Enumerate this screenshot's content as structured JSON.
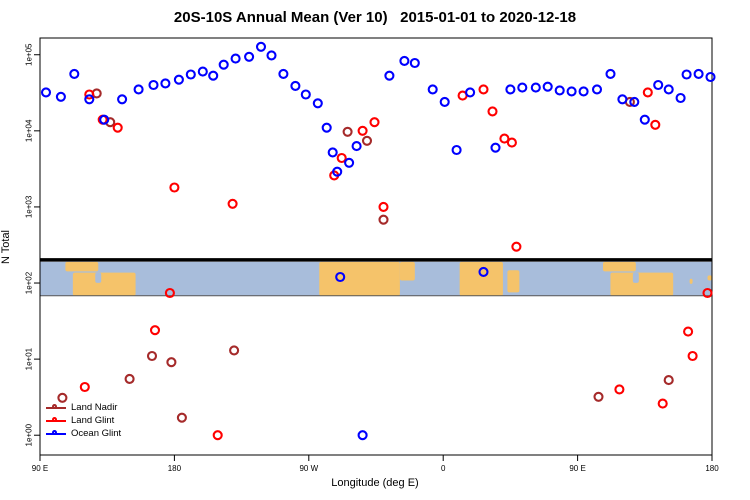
{
  "title": "20S-10S Annual Mean (Ver 10)   2015-01-01 to 2020-12-18",
  "chart_data": {
    "type": "scatter",
    "title": "20S-10S Annual Mean (Ver 10)   2015-01-01 to 2020-12-18",
    "xlabel": "Longitude (deg E)",
    "ylabel": "N Total",
    "x_axis": {
      "range": [
        90,
        540
      ],
      "ticks": [
        90,
        180,
        270,
        360,
        450,
        540
      ],
      "tick_labels": [
        "90 E",
        "180",
        "90 W",
        "0",
        "90 E",
        "180"
      ]
    },
    "y_axis": {
      "scale": "log10",
      "range_log": [
        -0.26,
        5.22
      ],
      "ticks_log": [
        0,
        1,
        2,
        3,
        4,
        5
      ],
      "tick_labels": [
        "1e+00",
        "1e+01",
        "1e+02",
        "1e+03",
        "1e+04",
        "1e+05"
      ]
    },
    "grid": false,
    "legend_position": "bottom-left",
    "map_strip": {
      "description": "world coastline band for latitude 20S-10S",
      "top_value": 190,
      "bottom_value": 68,
      "ocean_color": "#A8BDDB",
      "land_color": "#F5C36A",
      "land_patches": [
        {
          "name": "timor-islands",
          "lon0": 107,
          "lon1": 129,
          "top": 0,
          "bottom": 0.28
        },
        {
          "name": "australia-north",
          "lon0": 112,
          "lon1": 154,
          "top": 0.32,
          "bottom": 1.0
        },
        {
          "name": "gulf-of-carpentaria",
          "lon0": 127,
          "lon1": 131,
          "top": 0.32,
          "bottom": 0.62,
          "color": "ocean"
        },
        {
          "name": "south-america",
          "lon0": 277,
          "lon1": 331,
          "top": 0,
          "bottom": 1.0
        },
        {
          "name": "south-america-east",
          "lon0": 331,
          "lon1": 341,
          "top": 0,
          "bottom": 0.55
        },
        {
          "name": "africa",
          "lon0": 371,
          "lon1": 400,
          "top": 0,
          "bottom": 1.0
        },
        {
          "name": "madagascar",
          "lon0": 403,
          "lon1": 411,
          "top": 0.25,
          "bottom": 0.9
        },
        {
          "name": "timor-islands-2",
          "lon0": 467,
          "lon1": 489,
          "top": 0,
          "bottom": 0.28
        },
        {
          "name": "australia-north-2",
          "lon0": 472,
          "lon1": 514,
          "top": 0.32,
          "bottom": 1.0
        },
        {
          "name": "gulf-of-carpentaria-2",
          "lon0": 487,
          "lon1": 491,
          "top": 0.32,
          "bottom": 0.62,
          "color": "ocean"
        },
        {
          "name": "new-caledonia",
          "lon0": 525,
          "lon1": 527,
          "top": 0.5,
          "bottom": 0.65
        },
        {
          "name": "fiji",
          "lon0": 537,
          "lon1": 540,
          "top": 0.4,
          "bottom": 0.55
        }
      ]
    },
    "series": [
      {
        "name": "Land Nadir",
        "color": "#A52A2A",
        "points": [
          [
            128,
            31000
          ],
          [
            137,
            13000
          ],
          [
            296,
            9700
          ],
          [
            309,
            7400
          ],
          [
            320,
            680
          ],
          [
            485,
            24000
          ],
          [
            220,
            13
          ],
          [
            165,
            11
          ],
          [
            178,
            9.1
          ],
          [
            150,
            5.5
          ],
          [
            105,
            3.1
          ],
          [
            185,
            1.7
          ],
          [
            464,
            3.2
          ],
          [
            511,
            5.3
          ]
        ]
      },
      {
        "name": "Land Glint",
        "color": "#FF0000",
        "points": [
          [
            123,
            30000
          ],
          [
            132,
            14000
          ],
          [
            142,
            11000
          ],
          [
            180,
            1800
          ],
          [
            219,
            1100
          ],
          [
            287,
            2600
          ],
          [
            292,
            4400
          ],
          [
            306,
            10000
          ],
          [
            314,
            13000
          ],
          [
            320,
            1000
          ],
          [
            373,
            29000
          ],
          [
            387,
            35000
          ],
          [
            393,
            18000
          ],
          [
            401,
            7900
          ],
          [
            406,
            7000
          ],
          [
            497,
            32000
          ],
          [
            502,
            12000
          ],
          [
            409,
            300
          ],
          [
            177,
            74
          ],
          [
            167,
            24
          ],
          [
            120,
            4.3
          ],
          [
            209,
            1
          ],
          [
            478,
            4
          ],
          [
            507,
            2.6
          ],
          [
            524,
            23
          ],
          [
            527,
            11
          ],
          [
            537,
            74
          ]
        ]
      },
      {
        "name": "Ocean Glint",
        "color": "#0000FF",
        "points": [
          [
            94,
            32000
          ],
          [
            104,
            28000
          ],
          [
            113,
            56000
          ],
          [
            123,
            26000
          ],
          [
            133,
            14000
          ],
          [
            145,
            26000
          ],
          [
            156,
            35000
          ],
          [
            166,
            40000
          ],
          [
            174,
            42000
          ],
          [
            183,
            47000
          ],
          [
            191,
            55000
          ],
          [
            199,
            60000
          ],
          [
            206,
            53000
          ],
          [
            213,
            74000
          ],
          [
            221,
            89000
          ],
          [
            230,
            94000
          ],
          [
            238,
            127000
          ],
          [
            245,
            98000
          ],
          [
            253,
            56000
          ],
          [
            261,
            39000
          ],
          [
            268,
            30000
          ],
          [
            276,
            23000
          ],
          [
            282,
            11000
          ],
          [
            286,
            5200
          ],
          [
            289,
            2900
          ],
          [
            297,
            3800
          ],
          [
            302,
            6300
          ],
          [
            324,
            53000
          ],
          [
            334,
            83000
          ],
          [
            341,
            78000
          ],
          [
            353,
            35000
          ],
          [
            361,
            24000
          ],
          [
            369,
            5600
          ],
          [
            378,
            32000
          ],
          [
            395,
            6000
          ],
          [
            405,
            35000
          ],
          [
            413,
            37000
          ],
          [
            422,
            37000
          ],
          [
            430,
            38000
          ],
          [
            438,
            34000
          ],
          [
            446,
            33000
          ],
          [
            454,
            33000
          ],
          [
            463,
            35000
          ],
          [
            472,
            56000
          ],
          [
            480,
            26000
          ],
          [
            488,
            24000
          ],
          [
            495,
            14000
          ],
          [
            504,
            40000
          ],
          [
            511,
            35000
          ],
          [
            519,
            27000
          ],
          [
            523,
            55000
          ],
          [
            531,
            56000
          ],
          [
            539,
            51000
          ],
          [
            291,
            120
          ],
          [
            387,
            140
          ],
          [
            306,
            1
          ]
        ]
      }
    ]
  },
  "legend": {
    "entries": [
      {
        "label": "Land Nadir",
        "color": "#A52A2A"
      },
      {
        "label": "Land Glint",
        "color": "#FF0000"
      },
      {
        "label": "Ocean Glint",
        "color": "#0000FF"
      }
    ]
  }
}
